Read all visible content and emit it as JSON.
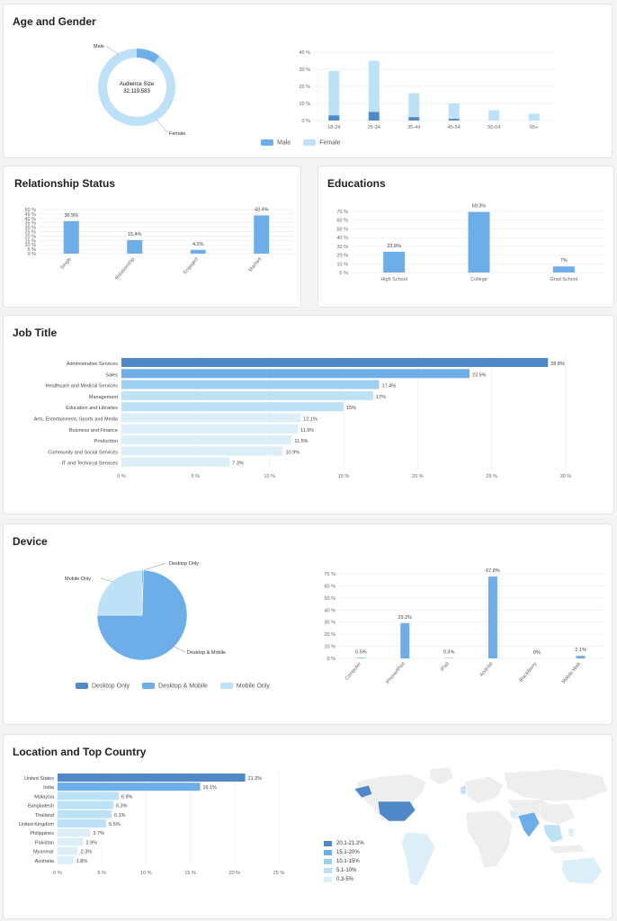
{
  "sections": {
    "age_gender": "Age and Gender",
    "relationship": "Relationship Status",
    "educations": "Educations",
    "job_title": "Job Title",
    "device": "Device",
    "location": "Location and Top Country"
  },
  "colors": {
    "dark": "#5088c8",
    "mid": "#6daee8",
    "light": "#bde1f7",
    "lighter": "#dceff9",
    "grid": "#e6e6e6",
    "axis": "#666"
  },
  "chart_data": [
    {
      "id": "audience_donut",
      "type": "pie",
      "center_label": "Audience Size",
      "center_value": "32,119,583",
      "slices": [
        {
          "label": "Male",
          "value": 10
        },
        {
          "label": "Female",
          "value": 90
        }
      ]
    },
    {
      "id": "age_gender_bars",
      "type": "bar",
      "categories": [
        "18-24",
        "25-34",
        "35-44",
        "45-54",
        "55-64",
        "65+"
      ],
      "series": [
        {
          "name": "Male",
          "values": [
            3,
            5,
            2,
            1,
            0,
            0
          ]
        },
        {
          "name": "Female",
          "values": [
            26,
            30,
            14,
            9,
            6,
            4
          ]
        }
      ],
      "ylim": [
        0,
        40
      ],
      "yticks": [
        "0 %",
        "10 %",
        "20 %",
        "30 %",
        "40 %"
      ],
      "stacked": true
    },
    {
      "id": "relationship",
      "type": "bar",
      "categories": [
        "Single",
        "Relationship",
        "Engaged",
        "Married"
      ],
      "values": [
        36.9,
        15.4,
        4.2,
        43.4
      ],
      "labels": [
        "36.9%",
        "15.4%",
        "4.2%",
        "43.4%"
      ],
      "ylim": [
        0,
        50
      ],
      "yticks": [
        "0 %",
        "5 %",
        "10 %",
        "15 %",
        "20 %",
        "25 %",
        "30 %",
        "35 %",
        "40 %",
        "45 %",
        "50 %"
      ]
    },
    {
      "id": "educations",
      "type": "bar",
      "categories": [
        "High School",
        "College",
        "Grad School"
      ],
      "values": [
        23.8,
        69.3,
        7
      ],
      "labels": [
        "23.8%",
        "69.3%",
        "7%"
      ],
      "ylim": [
        0,
        70
      ],
      "yticks": [
        "0 %",
        "10 %",
        "20 %",
        "30 %",
        "40 %",
        "50 %",
        "60 %",
        "70 %"
      ]
    },
    {
      "id": "job_title",
      "type": "bar",
      "orientation": "horizontal",
      "categories": [
        "Administrative Services",
        "Sales",
        "Healthcare and Medical Services",
        "Management",
        "Education and Libraries",
        "Arts, Entertainment, Sports and Media",
        "Business and Finance",
        "Production",
        "Community and Social Services",
        "IT and Technical Services"
      ],
      "values": [
        28.8,
        23.5,
        17.4,
        17,
        15,
        12.1,
        11.9,
        11.5,
        10.9,
        7.3
      ],
      "labels": [
        "28.8%",
        "23.5%",
        "17.4%",
        "17%",
        "15%",
        "12.1%",
        "11.9%",
        "11.5%",
        "10.9%",
        "7.3%"
      ],
      "xlim": [
        0,
        30
      ],
      "xticks": [
        "0 %",
        "5 %",
        "10 %",
        "15 %",
        "20 %",
        "25 %",
        "30 %"
      ]
    },
    {
      "id": "device_pie",
      "type": "pie",
      "slices": [
        {
          "label": "Desktop Only",
          "value": 0.5
        },
        {
          "label": "Desktop & Mobile",
          "value": 74.5
        },
        {
          "label": "Mobile Only",
          "value": 25
        }
      ],
      "legend": [
        "Desktop Only",
        "Desktop & Mobile",
        "Mobile Only"
      ]
    },
    {
      "id": "device_bars",
      "type": "bar",
      "categories": [
        "Computer",
        "iPhone/iPod",
        "iPad",
        "Android",
        "BlackBerry",
        "Mobile Web"
      ],
      "values": [
        0.5,
        29.2,
        0.3,
        67.8,
        0,
        2.1
      ],
      "labels": [
        "0.5%",
        "29.2%",
        "0.3%",
        "67.8%",
        "0%",
        "2.1%"
      ],
      "ylim": [
        0,
        70
      ],
      "yticks": [
        "0 %",
        "10 %",
        "20 %",
        "30 %",
        "40 %",
        "50 %",
        "60 %",
        "70 %"
      ]
    },
    {
      "id": "top_country",
      "type": "bar",
      "orientation": "horizontal",
      "categories": [
        "United States",
        "India",
        "Malaysia",
        "Bangladesh",
        "Thailand",
        "United Kingdom",
        "Philippines",
        "Pakistan",
        "Myanmar",
        "Australia"
      ],
      "values": [
        21.2,
        16.1,
        6.9,
        6.3,
        6.1,
        5.5,
        3.7,
        2.9,
        2.3,
        1.8
      ],
      "labels": [
        "21.2%",
        "16.1%",
        "6.9%",
        "6.3%",
        "6.1%",
        "5.5%",
        "3.7%",
        "2.9%",
        "2.3%",
        "1.8%"
      ],
      "xlim": [
        0,
        25
      ],
      "xticks": [
        "0 %",
        "5 %",
        "10 %",
        "15 %",
        "20 %",
        "25 %"
      ]
    }
  ],
  "map_legend": [
    "20.1-21.2%",
    "15.1-20%",
    "10.1-15%",
    "5.1-10%",
    "0.3-5%"
  ]
}
